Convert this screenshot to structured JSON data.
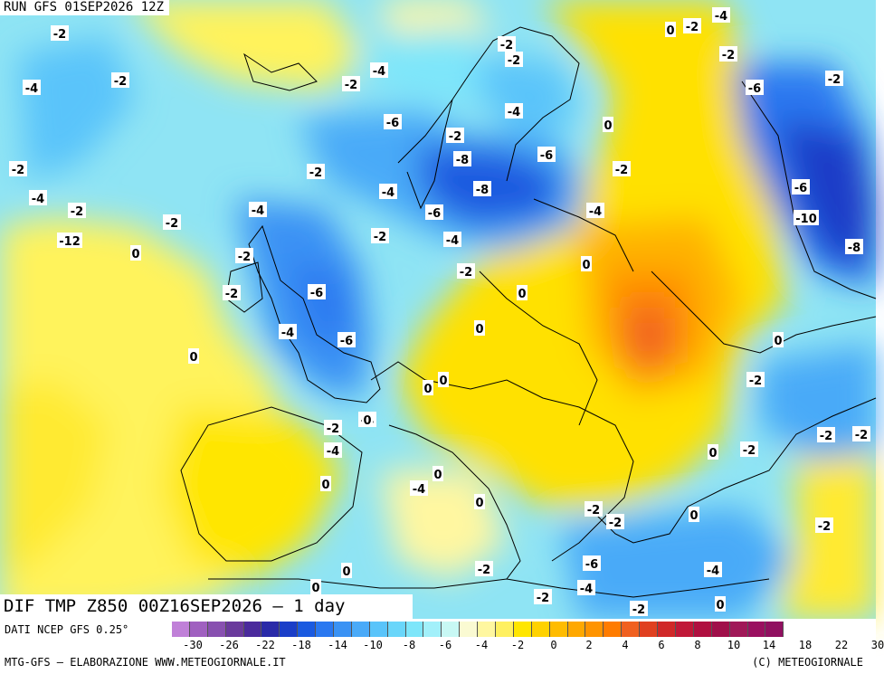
{
  "header": {
    "run_title": "RUN GFS 01SEP2026 12Z"
  },
  "map": {
    "title": "DIF TMP Z850 00Z16SEP2026 – 1 day",
    "contour_labels": [
      "-2",
      "-4",
      "-2",
      "-4",
      "-2",
      "-2",
      "-4",
      "-2",
      "-2",
      "-6",
      "-4",
      "-6",
      "-2",
      "-4",
      "-2",
      "-2",
      "-4",
      "-2",
      "-2",
      "-2",
      "-4",
      "-8",
      "-8",
      "-6",
      "-2",
      "-6",
      "-4",
      "-4",
      "-2",
      "-6",
      "-6",
      "-4",
      "-4",
      "-6",
      "-10",
      "-8",
      "-12",
      "0",
      "0",
      "0",
      "0",
      "0",
      "0",
      "0",
      "0",
      "-2",
      "-2",
      "-2",
      "0",
      "0",
      "-2",
      "0",
      "-2",
      "-2",
      "-2",
      "-2",
      "-2",
      "-4",
      "-4",
      "-6",
      "-4",
      "-2",
      "0",
      "-2",
      "-2",
      "0",
      "0",
      "0",
      "0",
      "-4",
      "0",
      "0",
      "-2",
      "-2",
      "0",
      "-2",
      "0"
    ]
  },
  "footer": {
    "source": "DATI NCEP GFS 0.25°",
    "credits": "MTG-GFS – ELABORAZIONE WWW.METEOGIORNALE.IT",
    "copyright": "(C) METEOGIORNALE",
    "colorbar": {
      "colors": [
        "#c080d8",
        "#a060c0",
        "#8850b0",
        "#6a3a9c",
        "#4a2a9c",
        "#2a2aa8",
        "#1a3ec8",
        "#1a5ae0",
        "#2a78f0",
        "#3a92f4",
        "#4aaaf8",
        "#5ac4fa",
        "#6ad6fa",
        "#7ee6fa",
        "#a2f0fa",
        "#c8f8f4",
        "#fafad2",
        "#fff7a0",
        "#fff060",
        "#ffe600",
        "#ffd200",
        "#ffbc00",
        "#ffa800",
        "#ff9400",
        "#ff7c00",
        "#f06020",
        "#e04020",
        "#d02828",
        "#c01838",
        "#b01040",
        "#a0104a",
        "#a01858",
        "#9a1060",
        "#901060"
      ],
      "tick_labels": [
        "-30",
        "-26",
        "-22",
        "-18",
        "-14",
        "-10",
        "-8",
        "-6",
        "-4",
        "-2",
        "0",
        "2",
        "4",
        "6",
        "8",
        "10",
        "14",
        "18",
        "22",
        "30"
      ]
    }
  }
}
